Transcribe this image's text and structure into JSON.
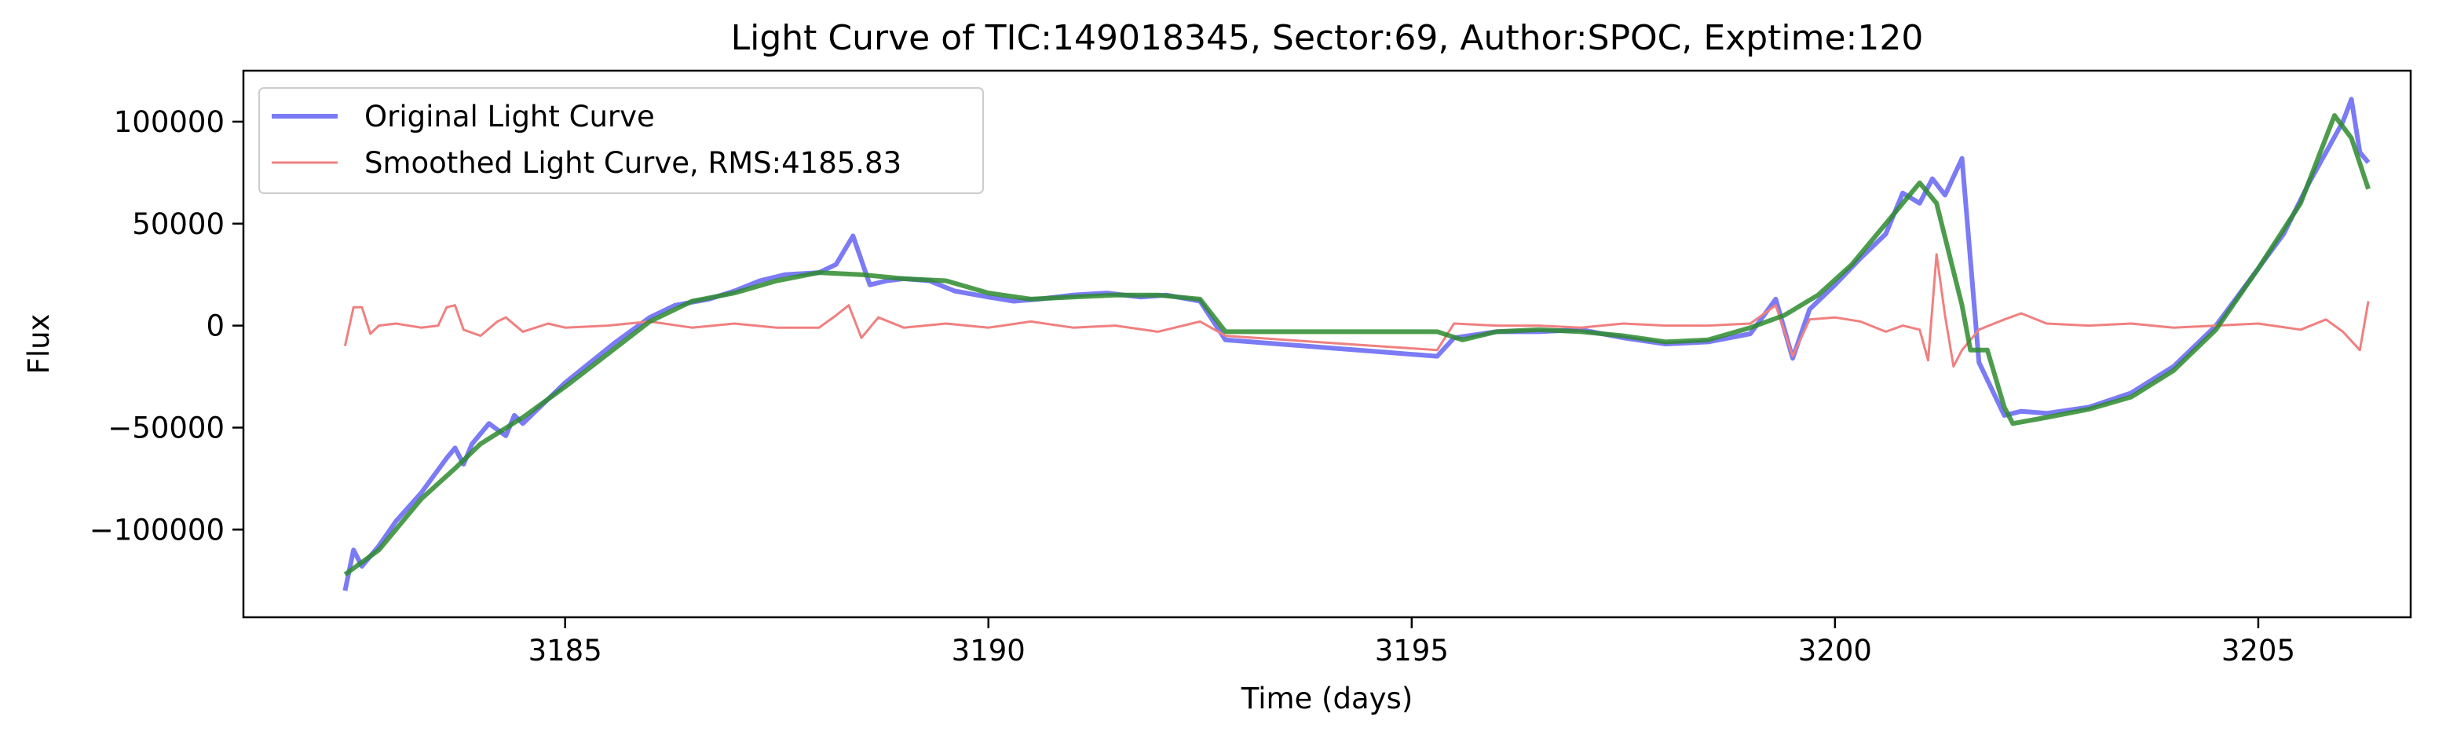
{
  "chart_data": {
    "type": "line",
    "title": "Light Curve of TIC:149018345, Sector:69, Author:SPOC, Exptime:120",
    "xlabel": "Time (days)",
    "ylabel": "Flux",
    "xlim": [
      3181.2,
      3206.8
    ],
    "ylim": [
      -143000,
      125000
    ],
    "xticks": [
      3185,
      3190,
      3195,
      3200,
      3205
    ],
    "xtick_labels": [
      "3185",
      "3190",
      "3195",
      "3200",
      "3205"
    ],
    "yticks": [
      -100000,
      -50000,
      0,
      50000,
      100000
    ],
    "ytick_labels": [
      "−100000",
      "−50000",
      "0",
      "50000",
      "100000"
    ],
    "grid": false,
    "legend_position": "top-left",
    "series": [
      {
        "name": "Original Light Curve",
        "color": "#7b7bf5",
        "x": [
          3182.4,
          3182.5,
          3182.6,
          3182.8,
          3183.0,
          3183.3,
          3183.6,
          3183.7,
          3183.8,
          3183.9,
          3184.1,
          3184.3,
          3184.4,
          3184.5,
          3184.8,
          3185.0,
          3185.3,
          3185.6,
          3186.0,
          3186.3,
          3186.7,
          3187.0,
          3187.3,
          3187.6,
          3188.0,
          3188.2,
          3188.4,
          3188.6,
          3188.8,
          3189.0,
          3189.3,
          3189.6,
          3190.0,
          3190.3,
          3190.6,
          3191.0,
          3191.4,
          3191.8,
          3192.1,
          3192.5,
          3192.8,
          3195.3,
          3195.5,
          3196.0,
          3196.5,
          3197.0,
          3197.5,
          3198.0,
          3198.5,
          3199.0,
          3199.3,
          3199.5,
          3199.7,
          3200.0,
          3200.3,
          3200.6,
          3200.8,
          3201.0,
          3201.15,
          3201.3,
          3201.5,
          3201.7,
          3202.0,
          3202.2,
          3202.5,
          3203.0,
          3203.5,
          3204.0,
          3204.5,
          3205.0,
          3205.3,
          3205.6,
          3205.8,
          3206.0,
          3206.1,
          3206.2,
          3206.3
        ],
        "y": [
          -130000,
          -110000,
          -118000,
          -108000,
          -96000,
          -82000,
          -65000,
          -60000,
          -68000,
          -58000,
          -48000,
          -54000,
          -44000,
          -48000,
          -36000,
          -28000,
          -18000,
          -8000,
          4000,
          10000,
          13000,
          17000,
          22000,
          25000,
          26000,
          30000,
          44000,
          20000,
          22000,
          23000,
          22000,
          17000,
          14000,
          12000,
          13000,
          15000,
          16000,
          14000,
          15000,
          12000,
          -7000,
          -15000,
          -6000,
          -3000,
          -3000,
          -2000,
          -6000,
          -9000,
          -8000,
          -4000,
          13000,
          -16000,
          8000,
          20000,
          33000,
          45000,
          65000,
          60000,
          72000,
          64000,
          82000,
          -18000,
          -44000,
          -42000,
          -43000,
          -40000,
          -33000,
          -20000,
          0,
          28000,
          45000,
          70000,
          85000,
          100000,
          111000,
          85000,
          80000
        ]
      },
      {
        "name": "Smoothed Light Curve, RMS:4185.83",
        "color": "#f08080",
        "x": [
          3182.4,
          3182.5,
          3182.6,
          3182.7,
          3182.8,
          3183.0,
          3183.3,
          3183.5,
          3183.6,
          3183.7,
          3183.8,
          3184.0,
          3184.2,
          3184.3,
          3184.5,
          3184.8,
          3185.0,
          3185.5,
          3186.0,
          3186.5,
          3187.0,
          3187.5,
          3188.0,
          3188.2,
          3188.35,
          3188.5,
          3188.7,
          3189.0,
          3189.5,
          3190.0,
          3190.5,
          3191.0,
          3191.5,
          3192.0,
          3192.5,
          3192.8,
          3195.3,
          3195.5,
          3196.0,
          3196.5,
          3197.0,
          3197.5,
          3198.0,
          3198.5,
          3199.0,
          3199.3,
          3199.5,
          3199.7,
          3200.0,
          3200.3,
          3200.6,
          3200.8,
          3201.0,
          3201.1,
          3201.2,
          3201.3,
          3201.4,
          3201.5,
          3201.7,
          3202.0,
          3202.2,
          3202.5,
          3203.0,
          3203.5,
          3204.0,
          3204.5,
          3205.0,
          3205.5,
          3205.8,
          3206.0,
          3206.2,
          3206.3
        ],
        "y": [
          -10000,
          9000,
          9000,
          -4000,
          0,
          1000,
          -1000,
          0,
          9000,
          10000,
          -2000,
          -5000,
          2000,
          4000,
          -3000,
          1000,
          -1000,
          0,
          2000,
          -1000,
          1000,
          -1000,
          -1000,
          5000,
          10000,
          -6000,
          4000,
          -1000,
          1000,
          -1000,
          2000,
          -1000,
          0,
          -3000,
          2000,
          -5000,
          -12000,
          1000,
          0,
          0,
          -1000,
          1000,
          0,
          0,
          1000,
          10000,
          -15000,
          3000,
          4000,
          2000,
          -3000,
          0,
          -2000,
          -17000,
          35000,
          5000,
          -20000,
          -12000,
          -2000,
          3000,
          6000,
          1000,
          0,
          1000,
          -1000,
          0,
          1000,
          -2000,
          3000,
          -3000,
          -12000,
          12000
        ]
      },
      {
        "name": "",
        "color": "#2e8b2e",
        "x": [
          3182.4,
          3182.8,
          3183.3,
          3183.7,
          3184.0,
          3184.5,
          3185.0,
          3185.5,
          3186.0,
          3186.5,
          3187.0,
          3187.5,
          3188.0,
          3188.5,
          3189.0,
          3189.5,
          3190.0,
          3190.5,
          3191.0,
          3191.5,
          3192.0,
          3192.5,
          3192.8,
          3195.3,
          3195.6,
          3196.0,
          3196.5,
          3197.0,
          3197.5,
          3198.0,
          3198.5,
          3199.0,
          3199.4,
          3199.8,
          3200.2,
          3200.6,
          3201.0,
          3201.2,
          3201.5,
          3201.6,
          3201.8,
          3202.0,
          3202.1,
          3202.5,
          3203.0,
          3203.5,
          3204.0,
          3204.5,
          3205.0,
          3205.5,
          3205.9,
          3206.1,
          3206.3
        ],
        "y": [
          -122000,
          -110000,
          -85000,
          -70000,
          -58000,
          -45000,
          -30000,
          -14000,
          2000,
          12000,
          16000,
          22000,
          26000,
          25000,
          23000,
          22000,
          16000,
          13000,
          14000,
          15000,
          15000,
          13000,
          -3000,
          -3000,
          -7000,
          -3000,
          -2000,
          -3000,
          -5000,
          -8000,
          -7000,
          -1000,
          5000,
          15000,
          30000,
          50000,
          70000,
          60000,
          10000,
          -12000,
          -12000,
          -40000,
          -48000,
          -45000,
          -41000,
          -35000,
          -22000,
          -2000,
          28000,
          60000,
          103000,
          92000,
          67000
        ]
      }
    ]
  }
}
